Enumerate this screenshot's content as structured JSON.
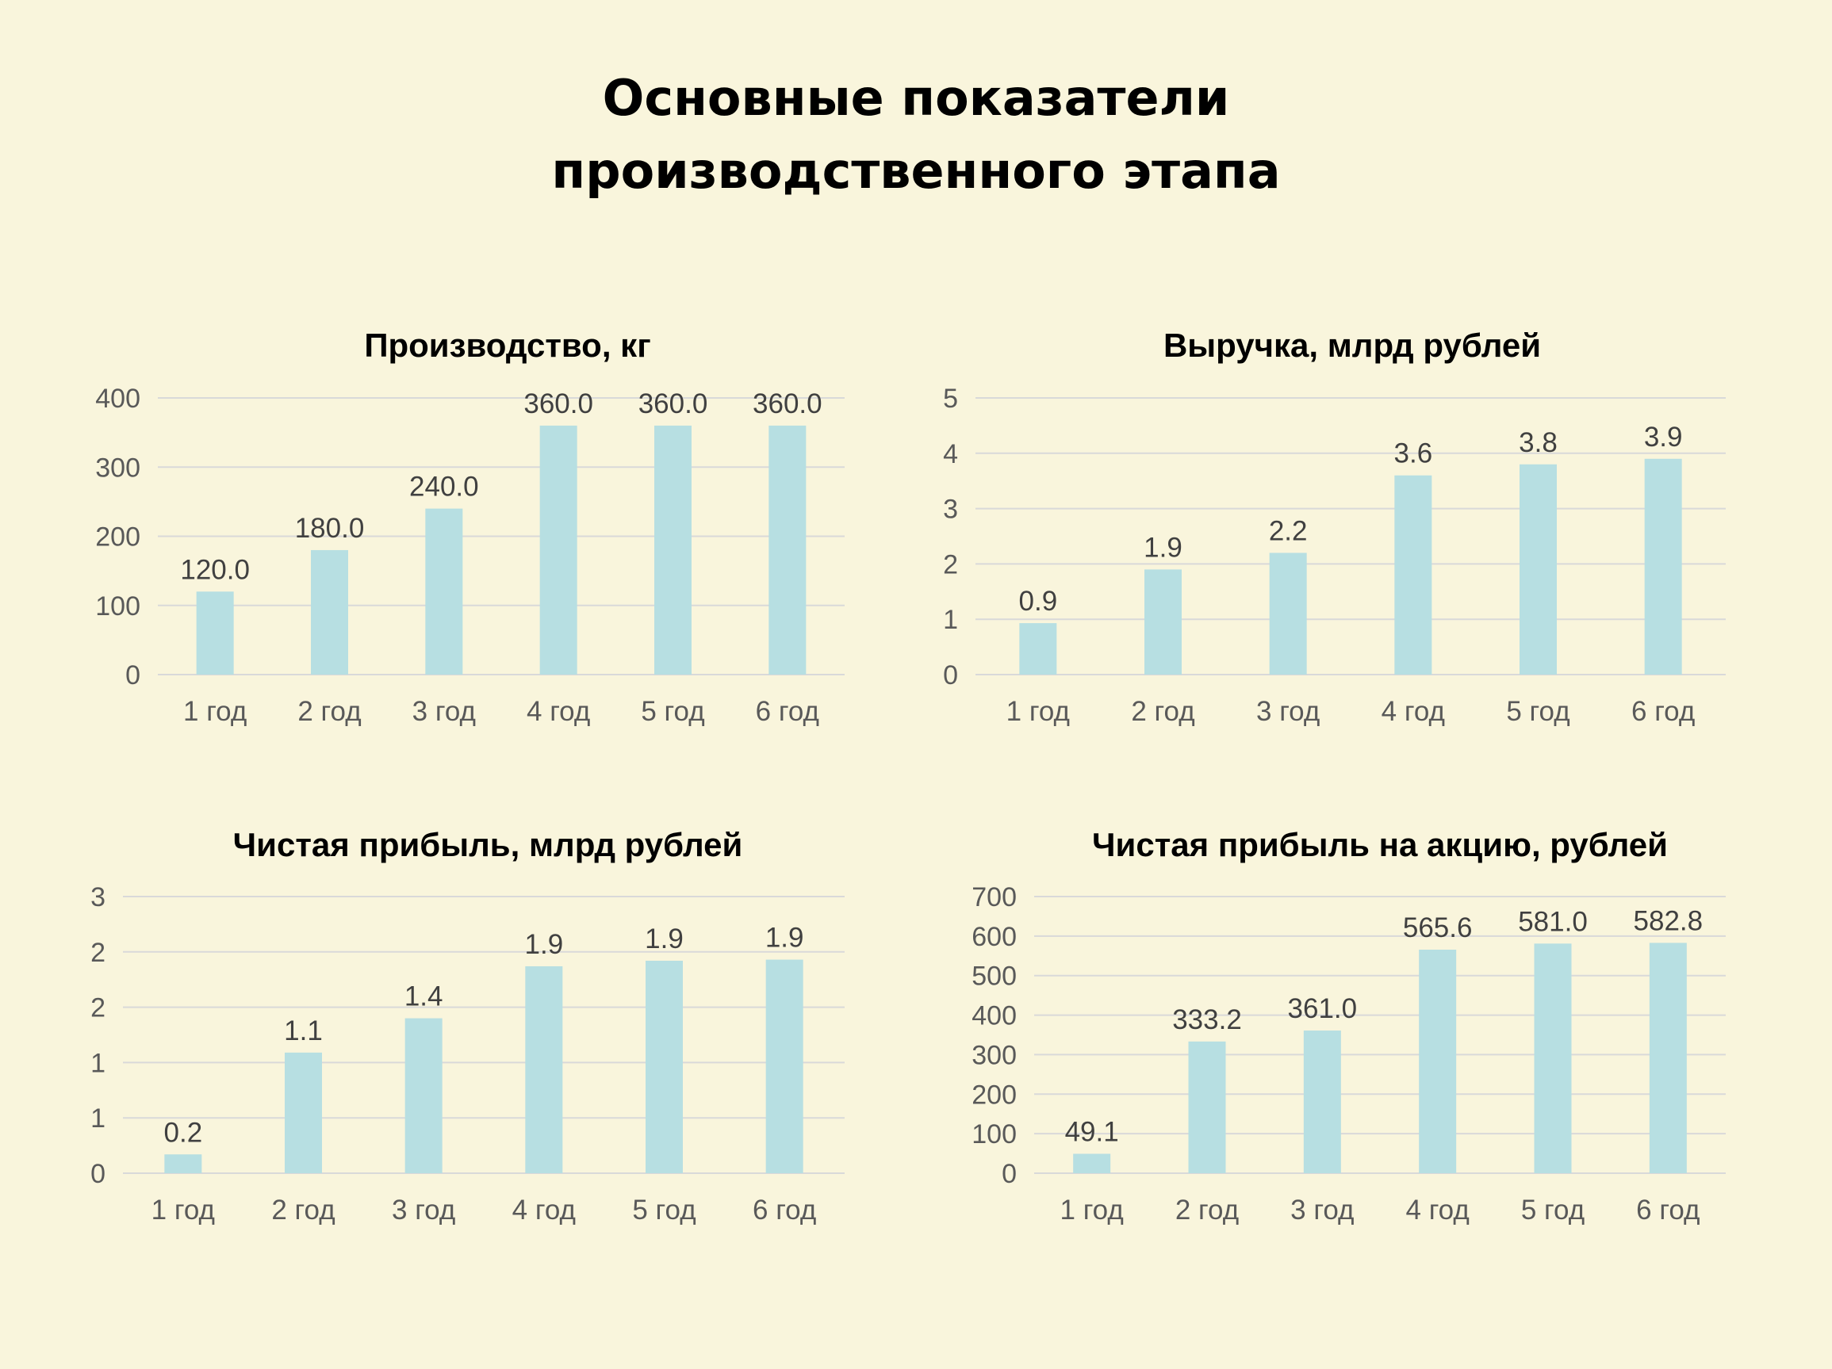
{
  "page": {
    "title_line1": "Основные показатели",
    "title_line2": "производственного этапа"
  },
  "colors": {
    "background": "#f9f5dc",
    "bar": "#b7dfe2",
    "grid": "#d9d9d9",
    "text": "#404040"
  },
  "chart_data": [
    {
      "type": "bar",
      "title": "Производство, кг",
      "categories": [
        "1 год",
        "2 год",
        "3 год",
        "4 год",
        "5 год",
        "6 год"
      ],
      "values": [
        120.0,
        180.0,
        240.0,
        360.0,
        360.0,
        360.0
      ],
      "data_labels": [
        "120.0",
        "180.0",
        "240.0",
        "360.0",
        "360.0",
        "360.0"
      ],
      "yticks": [
        0,
        100,
        200,
        300,
        400
      ],
      "ytick_labels": [
        "0",
        "100",
        "200",
        "300",
        "400"
      ],
      "ylim": [
        0,
        400
      ],
      "grid": true,
      "xlabel": "",
      "ylabel": ""
    },
    {
      "type": "bar",
      "title": "Выручка, млрд рублей",
      "categories": [
        "1 год",
        "2 год",
        "3 год",
        "4 год",
        "5 год",
        "6 год"
      ],
      "values": [
        0.93,
        1.9,
        2.2,
        3.6,
        3.8,
        3.9
      ],
      "data_labels": [
        "0.9",
        "1.9",
        "2.2",
        "3.6",
        "3.8",
        "3.9"
      ],
      "yticks": [
        0,
        1,
        2,
        3,
        4,
        5
      ],
      "ytick_labels": [
        "0",
        "1",
        "2",
        "3",
        "4",
        "5"
      ],
      "ylim": [
        0,
        5
      ],
      "grid": true,
      "xlabel": "",
      "ylabel": ""
    },
    {
      "type": "bar",
      "title": "Чистая прибыль, млрд рублей",
      "categories": [
        "1 год",
        "2 год",
        "3 год",
        "4 год",
        "5 год",
        "6 год"
      ],
      "values": [
        0.17,
        1.09,
        1.4,
        1.87,
        1.92,
        1.93
      ],
      "data_labels": [
        "0.2",
        "1.1",
        "1.4",
        "1.9",
        "1.9",
        "1.9"
      ],
      "yticks": [
        0,
        0.5,
        1,
        1.5,
        2,
        2.5
      ],
      "ytick_labels": [
        "0",
        "1",
        "1",
        "2",
        "2",
        "3"
      ],
      "ylim": [
        0,
        2.5
      ],
      "grid": true,
      "xlabel": "",
      "ylabel": ""
    },
    {
      "type": "bar",
      "title": "Чистая прибыль на акцию, рублей",
      "categories": [
        "1 год",
        "2 год",
        "3 год",
        "4 год",
        "5 год",
        "6 год"
      ],
      "values": [
        49.1,
        333.2,
        361.0,
        565.6,
        581.0,
        582.8
      ],
      "data_labels": [
        "49.1",
        "333.2",
        "361.0",
        "565.6",
        "581.0",
        "582.8"
      ],
      "yticks": [
        0,
        100,
        200,
        300,
        400,
        500,
        600,
        700
      ],
      "ytick_labels": [
        "0",
        "100",
        "200",
        "300",
        "400",
        "500",
        "600",
        "700"
      ],
      "ylim": [
        0,
        700
      ],
      "grid": true,
      "xlabel": "",
      "ylabel": ""
    }
  ]
}
